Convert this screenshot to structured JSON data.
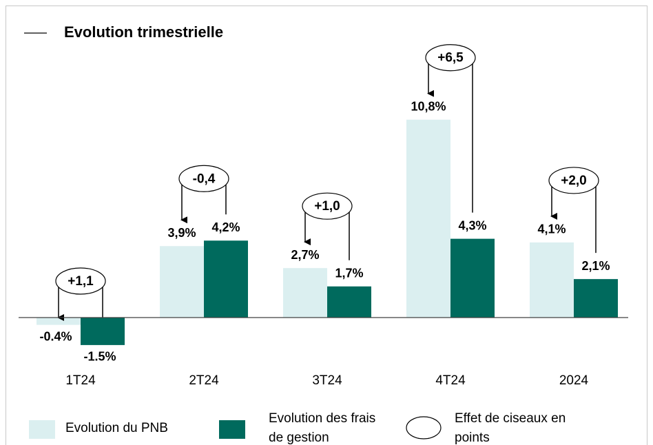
{
  "chart_data": {
    "type": "bar",
    "title": "Evolution trimestrielle",
    "categories": [
      "1T24",
      "2T24",
      "3T24",
      "4T24",
      "2024"
    ],
    "series": [
      {
        "name": "Evolution du PNB",
        "color": "#dbeff0",
        "values": [
          -0.4,
          3.9,
          2.7,
          10.8,
          4.1
        ],
        "value_labels": [
          "-0.4%",
          "3,9%",
          "2,7%",
          "10,8%",
          "4,1%"
        ]
      },
      {
        "name": "Evolution des frais de gestion",
        "color": "#006a5d",
        "values": [
          -1.5,
          4.2,
          1.7,
          4.3,
          2.1
        ],
        "value_labels": [
          "-1.5%",
          "4,2%",
          "1,7%",
          "4,3%",
          "2,1%"
        ]
      }
    ],
    "scissors": {
      "name": "Effet de ciseaux en points",
      "values": [
        1.1,
        -0.4,
        1.0,
        6.5,
        2.0
      ],
      "value_labels": [
        "+1,1",
        "-0,4",
        "+1,0",
        "+6,5",
        "+2,0"
      ]
    }
  }
}
